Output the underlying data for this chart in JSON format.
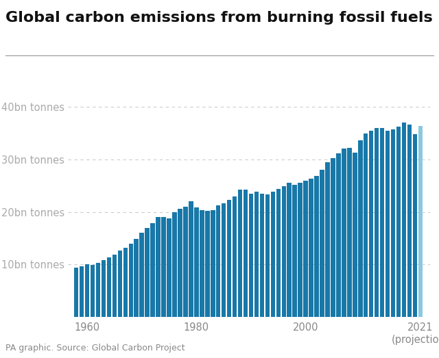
{
  "title": "Global carbon emissions from burning fossil fuels",
  "source": "PA graphic. Source: Global Carbon Project",
  "bar_color": "#1878a8",
  "projection_color": "#8cc8e0",
  "background_color": "#ffffff",
  "ytick_labels": [
    "10bn tonnes",
    "20bn tonnes",
    "30bn tonnes",
    "40bn tonnes"
  ],
  "ytick_values": [
    10,
    20,
    30,
    40
  ],
  "ylim": [
    0,
    43
  ],
  "years": [
    1958,
    1959,
    1960,
    1961,
    1962,
    1963,
    1964,
    1965,
    1966,
    1967,
    1968,
    1969,
    1970,
    1971,
    1972,
    1973,
    1974,
    1975,
    1976,
    1977,
    1978,
    1979,
    1980,
    1981,
    1982,
    1983,
    1984,
    1985,
    1986,
    1987,
    1988,
    1989,
    1990,
    1991,
    1992,
    1993,
    1994,
    1995,
    1996,
    1997,
    1998,
    1999,
    2000,
    2001,
    2002,
    2003,
    2004,
    2005,
    2006,
    2007,
    2008,
    2009,
    2010,
    2011,
    2012,
    2013,
    2014,
    2015,
    2016,
    2017,
    2018,
    2019,
    2020,
    2021
  ],
  "values": [
    9.4,
    9.6,
    10.0,
    9.9,
    10.3,
    10.8,
    11.4,
    11.9,
    12.7,
    13.1,
    14.0,
    14.9,
    16.0,
    16.9,
    17.8,
    19.0,
    19.0,
    18.8,
    20.0,
    20.6,
    21.0,
    22.0,
    20.9,
    20.4,
    20.2,
    20.3,
    21.2,
    21.7,
    22.3,
    23.0,
    24.2,
    24.3,
    23.5,
    23.8,
    23.5,
    23.3,
    23.8,
    24.4,
    24.9,
    25.6,
    25.2,
    25.5,
    26.0,
    26.3,
    26.8,
    28.1,
    29.5,
    30.3,
    31.2,
    32.1,
    32.2,
    31.3,
    33.6,
    35.0,
    35.5,
    36.0,
    36.0,
    35.5,
    35.8,
    36.2,
    37.1,
    36.7,
    34.8,
    36.4
  ],
  "title_fontsize": 16,
  "tick_fontsize": 10.5,
  "source_fontsize": 9,
  "xlim_left": 1956.5,
  "xlim_right": 2022.8
}
